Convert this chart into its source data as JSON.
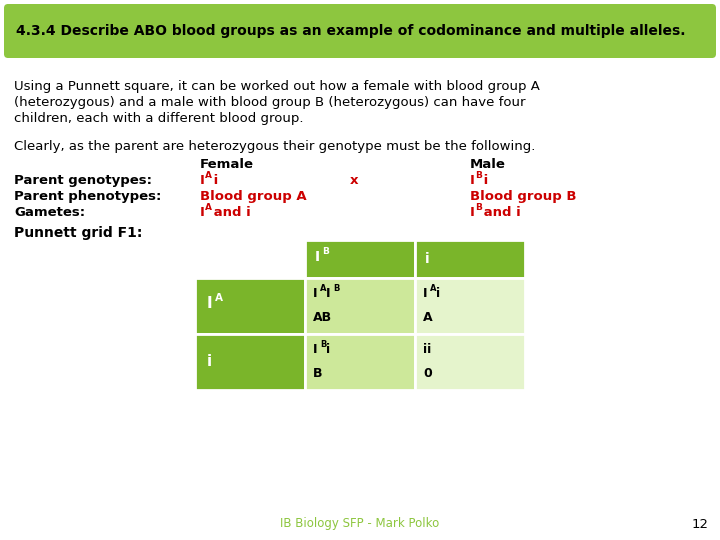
{
  "title": "4.3.4 Describe ABO blood groups as an example of codominance and multiple alleles.",
  "title_bg": "#8dc63f",
  "title_text_color": "#000000",
  "body_bg": "#ffffff",
  "para1_line1": "Using a Punnett square, it can be worked out how a female with blood group A",
  "para1_line2": "(heterozygous) and a male with blood group B (heterozygous) can have four",
  "para1_line3": "children, each with a different blood group.",
  "para2": "Clearly, as the parent are heterozygous their genotype must be the following.",
  "female_label": "Female",
  "male_label": "Male",
  "parent_gen_label": "Parent genotypes:",
  "parent_phen_label": "Parent phenotypes:",
  "gametes_label": "Gametes:",
  "female_phenotype": "Blood group A",
  "male_phenotype": "Blood group B",
  "cross_x": "x",
  "punnett_label": "Punnett grid F1:",
  "green_dark": "#7ab52a",
  "green_light": "#cde89a",
  "green_lighter": "#e5f4cc",
  "footer_text": "IB Biology SFP - Mark Polko",
  "footer_color": "#8dc63f",
  "page_num": "12",
  "red_color": "#cc0000",
  "black_color": "#000000",
  "white_color": "#ffffff"
}
